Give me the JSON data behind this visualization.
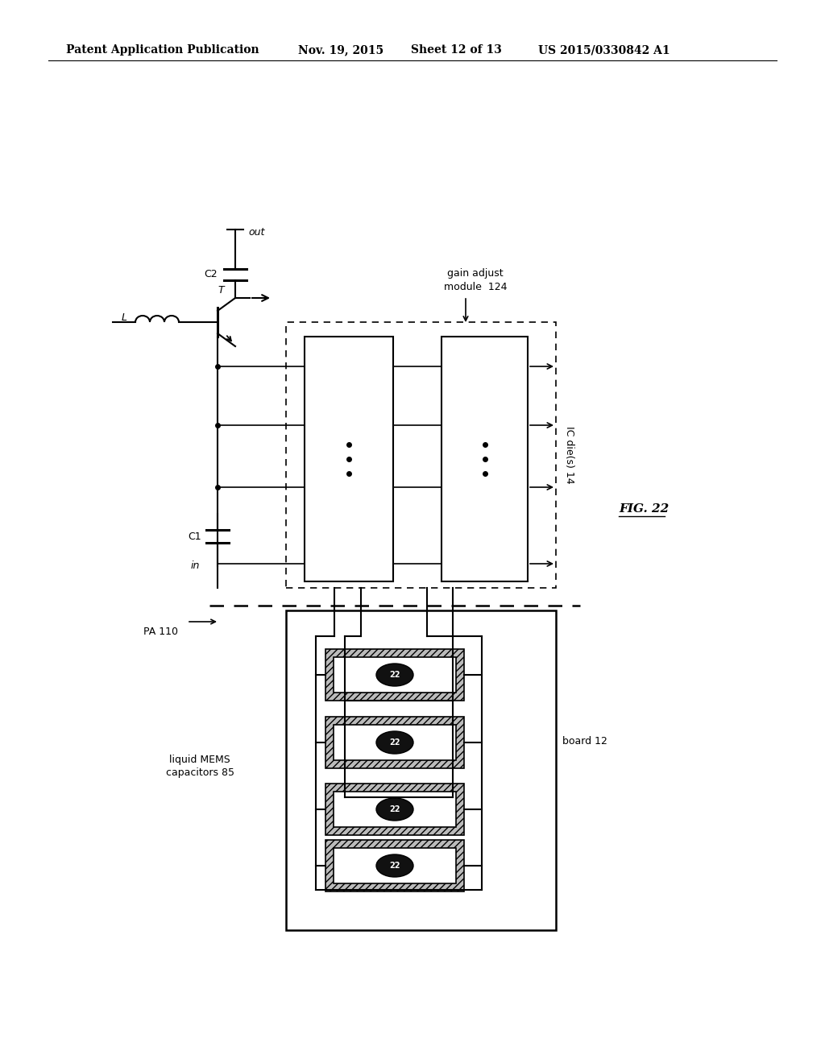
{
  "bg_color": "#ffffff",
  "header_left": "Patent Application Publication",
  "header_date": "Nov. 19, 2015",
  "header_sheet": "Sheet 12 of 13",
  "header_patent": "US 2015/0330842 A1",
  "fig_label": "FIG. 22",
  "header_fontsize": 10,
  "body_fontsize": 9,
  "small_fontsize": 7.5
}
